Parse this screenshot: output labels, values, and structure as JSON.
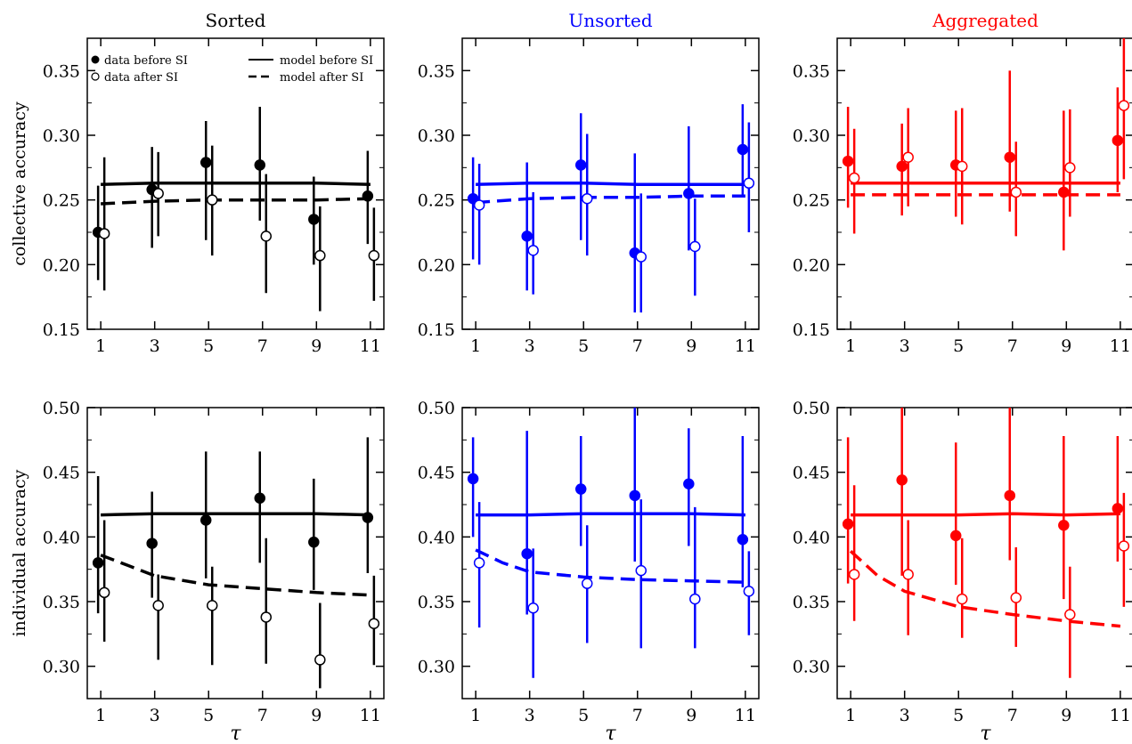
{
  "chart_data": [
    {
      "type": "scatter",
      "panel_title": "Sorted",
      "title_color": "#000000",
      "color": "#000000",
      "ylabel": "collective accuracy",
      "xlabel": "",
      "ylim": [
        0.15,
        0.375
      ],
      "xlim": [
        0.5,
        11.5
      ],
      "yticks": [
        "0.15",
        "0.20",
        "0.25",
        "0.30",
        "0.35"
      ],
      "xticks": [
        "1",
        "3",
        "5",
        "7",
        "9",
        "11"
      ],
      "legend": {
        "data_before": "data before SI",
        "data_after": "data after SI",
        "model_before": "model before SI",
        "model_after": "model after SI"
      },
      "data_before": {
        "x": [
          1,
          3,
          5,
          7,
          9,
          11
        ],
        "y": [
          0.225,
          0.258,
          0.279,
          0.277,
          0.235,
          0.253
        ],
        "lo": [
          0.188,
          0.213,
          0.219,
          0.234,
          0.2,
          0.216
        ],
        "hi": [
          0.261,
          0.291,
          0.311,
          0.322,
          0.268,
          0.288
        ]
      },
      "data_after": {
        "x": [
          1,
          3,
          5,
          7,
          9,
          11
        ],
        "y": [
          0.224,
          0.255,
          0.25,
          0.222,
          0.207,
          0.207
        ],
        "lo": [
          0.18,
          0.222,
          0.207,
          0.178,
          0.164,
          0.172
        ],
        "hi": [
          0.283,
          0.287,
          0.292,
          0.27,
          0.245,
          0.244
        ]
      },
      "model_before": {
        "x": [
          1,
          3,
          5,
          7,
          9,
          11
        ],
        "y": [
          0.262,
          0.263,
          0.263,
          0.263,
          0.263,
          0.262
        ]
      },
      "model_after": {
        "x": [
          1,
          3,
          5,
          7,
          9,
          11
        ],
        "y": [
          0.247,
          0.249,
          0.25,
          0.25,
          0.25,
          0.251
        ]
      }
    },
    {
      "type": "scatter",
      "panel_title": "Unsorted",
      "title_color": "#0000ff",
      "color": "#0000ff",
      "ylabel": "",
      "xlabel": "",
      "ylim": [
        0.15,
        0.375
      ],
      "xlim": [
        0.5,
        11.5
      ],
      "yticks": [
        "0.15",
        "0.20",
        "0.25",
        "0.30",
        "0.35"
      ],
      "xticks": [
        "1",
        "3",
        "5",
        "7",
        "9",
        "11"
      ],
      "data_before": {
        "x": [
          1,
          3,
          5,
          7,
          9,
          11
        ],
        "y": [
          0.251,
          0.222,
          0.277,
          0.209,
          0.255,
          0.289
        ],
        "lo": [
          0.204,
          0.18,
          0.219,
          0.163,
          0.211,
          0.254
        ],
        "hi": [
          0.283,
          0.279,
          0.317,
          0.286,
          0.307,
          0.324
        ]
      },
      "data_after": {
        "x": [
          1,
          3,
          5,
          7,
          9,
          11
        ],
        "y": [
          0.246,
          0.211,
          0.251,
          0.206,
          0.214,
          0.263
        ],
        "lo": [
          0.2,
          0.177,
          0.207,
          0.163,
          0.176,
          0.225
        ],
        "hi": [
          0.278,
          0.256,
          0.301,
          0.255,
          0.251,
          0.31
        ]
      },
      "model_before": {
        "x": [
          1,
          3,
          5,
          7,
          9,
          11
        ],
        "y": [
          0.262,
          0.263,
          0.263,
          0.262,
          0.262,
          0.262
        ]
      },
      "model_after": {
        "x": [
          1,
          3,
          5,
          7,
          9,
          11
        ],
        "y": [
          0.248,
          0.251,
          0.252,
          0.252,
          0.253,
          0.253
        ]
      }
    },
    {
      "type": "scatter",
      "panel_title": "Aggregated",
      "title_color": "#ff0000",
      "color": "#ff0000",
      "ylabel": "",
      "xlabel": "",
      "ylim": [
        0.15,
        0.375
      ],
      "xlim": [
        0.5,
        11.5
      ],
      "yticks": [
        "0.15",
        "0.20",
        "0.25",
        "0.30",
        "0.35"
      ],
      "xticks": [
        "1",
        "3",
        "5",
        "7",
        "9",
        "11"
      ],
      "data_before": {
        "x": [
          1,
          3,
          5,
          7,
          9,
          11
        ],
        "y": [
          0.28,
          0.276,
          0.277,
          0.283,
          0.256,
          0.296
        ],
        "lo": [
          0.244,
          0.238,
          0.237,
          0.241,
          0.211,
          0.256
        ],
        "hi": [
          0.322,
          0.309,
          0.319,
          0.35,
          0.319,
          0.337
        ]
      },
      "data_after": {
        "x": [
          1,
          3,
          5,
          7,
          9,
          11
        ],
        "y": [
          0.267,
          0.283,
          0.276,
          0.256,
          0.275,
          0.323
        ],
        "lo": [
          0.224,
          0.245,
          0.231,
          0.222,
          0.237,
          0.266
        ],
        "hi": [
          0.305,
          0.321,
          0.321,
          0.295,
          0.32,
          0.375
        ]
      },
      "model_before": {
        "x": [
          1,
          3,
          5,
          7,
          9,
          11
        ],
        "y": [
          0.263,
          0.263,
          0.263,
          0.263,
          0.263,
          0.263
        ]
      },
      "model_after": {
        "x": [
          1,
          3,
          5,
          7,
          9,
          11
        ],
        "y": [
          0.254,
          0.254,
          0.254,
          0.254,
          0.254,
          0.254
        ]
      }
    },
    {
      "type": "scatter",
      "color": "#000000",
      "ylabel": "individual accuracy",
      "xlabel": "τ",
      "ylim": [
        0.275,
        0.5
      ],
      "xlim": [
        0.5,
        11.5
      ],
      "yticks": [
        "0.30",
        "0.35",
        "0.40",
        "0.45",
        "0.50"
      ],
      "xticks": [
        "1",
        "3",
        "5",
        "7",
        "9",
        "11"
      ],
      "data_before": {
        "x": [
          1,
          3,
          5,
          7,
          9,
          11
        ],
        "y": [
          0.38,
          0.395,
          0.413,
          0.43,
          0.396,
          0.415
        ],
        "lo": [
          0.341,
          0.353,
          0.368,
          0.38,
          0.359,
          0.372
        ],
        "hi": [
          0.447,
          0.435,
          0.466,
          0.466,
          0.445,
          0.477
        ]
      },
      "data_after": {
        "x": [
          1,
          3,
          5,
          7,
          9,
          11
        ],
        "y": [
          0.357,
          0.347,
          0.347,
          0.338,
          0.305,
          0.333
        ],
        "lo": [
          0.319,
          0.305,
          0.301,
          0.302,
          0.283,
          0.301
        ],
        "hi": [
          0.413,
          0.371,
          0.377,
          0.399,
          0.349,
          0.37
        ]
      },
      "model_before": {
        "x": [
          1,
          3,
          5,
          7,
          9,
          11
        ],
        "y": [
          0.417,
          0.418,
          0.418,
          0.418,
          0.418,
          0.417
        ]
      },
      "model_after": {
        "x": [
          1,
          2,
          3,
          5,
          7,
          9,
          11
        ],
        "y": [
          0.386,
          0.378,
          0.37,
          0.363,
          0.36,
          0.357,
          0.355
        ]
      }
    },
    {
      "type": "scatter",
      "color": "#0000ff",
      "ylabel": "",
      "xlabel": "τ",
      "ylim": [
        0.275,
        0.5
      ],
      "xlim": [
        0.5,
        11.5
      ],
      "yticks": [
        "0.30",
        "0.35",
        "0.40",
        "0.45",
        "0.50"
      ],
      "xticks": [
        "1",
        "3",
        "5",
        "7",
        "9",
        "11"
      ],
      "data_before": {
        "x": [
          1,
          3,
          5,
          7,
          9,
          11
        ],
        "y": [
          0.445,
          0.387,
          0.437,
          0.432,
          0.441,
          0.398
        ],
        "lo": [
          0.4,
          0.34,
          0.393,
          0.381,
          0.393,
          0.361
        ],
        "hi": [
          0.477,
          0.482,
          0.478,
          0.5,
          0.484,
          0.478
        ]
      },
      "data_after": {
        "x": [
          1,
          3,
          5,
          7,
          9,
          11
        ],
        "y": [
          0.38,
          0.345,
          0.364,
          0.374,
          0.352,
          0.358
        ],
        "lo": [
          0.33,
          0.291,
          0.318,
          0.314,
          0.314,
          0.324
        ],
        "hi": [
          0.427,
          0.391,
          0.409,
          0.429,
          0.423,
          0.389
        ]
      },
      "model_before": {
        "x": [
          1,
          3,
          5,
          7,
          9,
          11
        ],
        "y": [
          0.417,
          0.417,
          0.418,
          0.418,
          0.418,
          0.417
        ]
      },
      "model_after": {
        "x": [
          1,
          2,
          3,
          5,
          7,
          9,
          11
        ],
        "y": [
          0.39,
          0.38,
          0.373,
          0.369,
          0.367,
          0.366,
          0.365
        ]
      }
    },
    {
      "type": "scatter",
      "color": "#ff0000",
      "ylabel": "",
      "xlabel": "τ",
      "ylim": [
        0.275,
        0.5
      ],
      "xlim": [
        0.5,
        11.5
      ],
      "yticks": [
        "0.30",
        "0.35",
        "0.40",
        "0.45",
        "0.50"
      ],
      "xticks": [
        "1",
        "3",
        "5",
        "7",
        "9",
        "11"
      ],
      "data_before": {
        "x": [
          1,
          3,
          5,
          7,
          9,
          11
        ],
        "y": [
          0.41,
          0.444,
          0.401,
          0.432,
          0.409,
          0.422
        ],
        "lo": [
          0.364,
          0.37,
          0.363,
          0.382,
          0.352,
          0.381
        ],
        "hi": [
          0.477,
          0.5,
          0.473,
          0.5,
          0.478,
          0.478
        ]
      },
      "data_after": {
        "x": [
          1,
          3,
          5,
          7,
          9,
          11
        ],
        "y": [
          0.371,
          0.371,
          0.352,
          0.353,
          0.34,
          0.393
        ],
        "lo": [
          0.335,
          0.324,
          0.322,
          0.315,
          0.291,
          0.346
        ],
        "hi": [
          0.44,
          0.413,
          0.399,
          0.392,
          0.377,
          0.434
        ]
      },
      "model_before": {
        "x": [
          1,
          3,
          5,
          7,
          9,
          11
        ],
        "y": [
          0.417,
          0.417,
          0.417,
          0.418,
          0.417,
          0.418
        ]
      },
      "model_after": {
        "x": [
          1,
          2,
          3,
          5,
          7,
          9,
          11
        ],
        "y": [
          0.389,
          0.37,
          0.358,
          0.346,
          0.34,
          0.335,
          0.331
        ]
      }
    }
  ]
}
